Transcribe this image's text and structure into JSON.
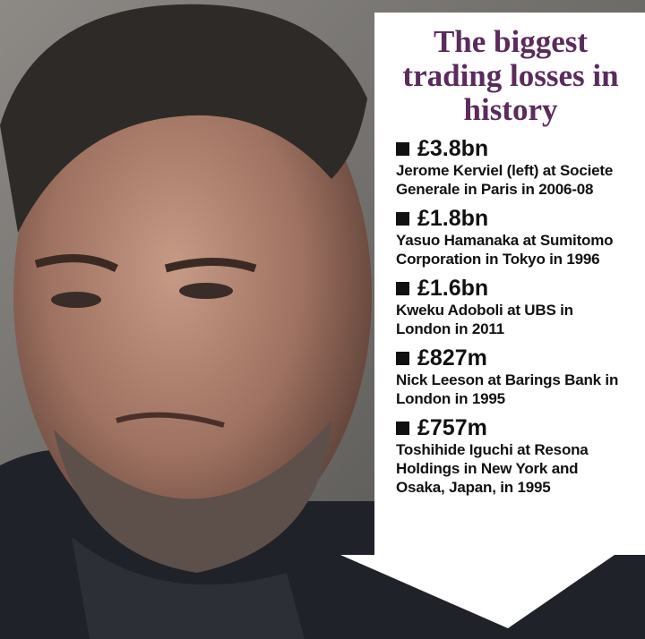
{
  "title": "The biggest trading losses in history",
  "items": [
    {
      "amount": "£3.8bn",
      "description": "Jerome Kerviel (left) at Societe Generale in Paris in 2006-08"
    },
    {
      "amount": "£1.8bn",
      "description": "Yasuo Hamanaka at Sumitomo Corporation in Tokyo in 1996"
    },
    {
      "amount": "£1.6bn",
      "description": "Kweku Adoboli at UBS in London in 2011"
    },
    {
      "amount": "£827m",
      "description": "Nick Leeson at Barings Bank in London in 1995"
    },
    {
      "amount": "£757m",
      "description": "Toshihide Iguchi at Resona Holdings in New York and Osaka, Japan, in 1995"
    }
  ]
}
